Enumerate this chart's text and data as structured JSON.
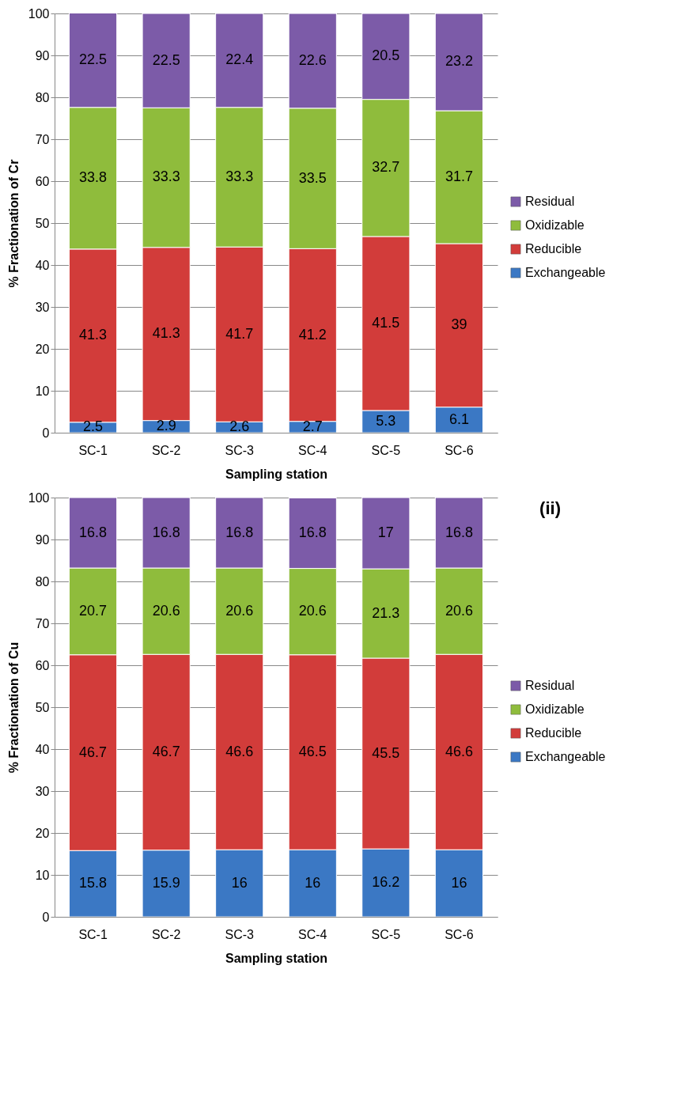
{
  "chart_data": [
    {
      "type": "bar",
      "stacked": true,
      "xlabel": "Sampling station",
      "ylabel": "% Fractionation of Cr",
      "categories": [
        "SC-1",
        "SC-2",
        "SC-3",
        "SC-4",
        "SC-5",
        "SC-6"
      ],
      "ylim": [
        0,
        100
      ],
      "yticks": [
        0,
        10,
        20,
        30,
        40,
        50,
        60,
        70,
        80,
        90,
        100
      ],
      "grid": "y",
      "legend": "right",
      "data_labels": true,
      "series": [
        {
          "name": "Exchangeable",
          "color": "#3b78c4",
          "values": [
            2.5,
            2.9,
            2.6,
            2.7,
            5.3,
            6.1
          ]
        },
        {
          "name": "Reducible",
          "color": "#d23c3a",
          "values": [
            41.3,
            41.3,
            41.7,
            41.2,
            41.5,
            39
          ]
        },
        {
          "name": "Oxidizable",
          "color": "#8fbc3c",
          "values": [
            33.8,
            33.3,
            33.3,
            33.5,
            32.7,
            31.7
          ]
        },
        {
          "name": "Residual",
          "color": "#7c5ba8",
          "values": [
            22.5,
            22.5,
            22.4,
            22.6,
            20.5,
            23.2
          ]
        }
      ]
    },
    {
      "type": "bar",
      "stacked": true,
      "xlabel": "Sampling station",
      "ylabel": "% Fractionation of Cu",
      "annotations": [
        "(ii)"
      ],
      "categories": [
        "SC-1",
        "SC-2",
        "SC-3",
        "SC-4",
        "SC-5",
        "SC-6"
      ],
      "ylim": [
        0,
        100
      ],
      "yticks": [
        0,
        10,
        20,
        30,
        40,
        50,
        60,
        70,
        80,
        90,
        100
      ],
      "grid": "y",
      "legend": "right",
      "data_labels": true,
      "series": [
        {
          "name": "Exchangeable",
          "color": "#3b78c4",
          "values": [
            15.8,
            15.9,
            16,
            16,
            16.2,
            16
          ]
        },
        {
          "name": "Reducible",
          "color": "#d23c3a",
          "values": [
            46.7,
            46.7,
            46.6,
            46.5,
            45.5,
            46.6
          ]
        },
        {
          "name": "Oxidizable",
          "color": "#8fbc3c",
          "values": [
            20.7,
            20.6,
            20.6,
            20.6,
            21.3,
            20.6
          ]
        },
        {
          "name": "Residual",
          "color": "#7c5ba8",
          "values": [
            16.8,
            16.8,
            16.8,
            16.8,
            17,
            16.8
          ]
        }
      ]
    }
  ]
}
